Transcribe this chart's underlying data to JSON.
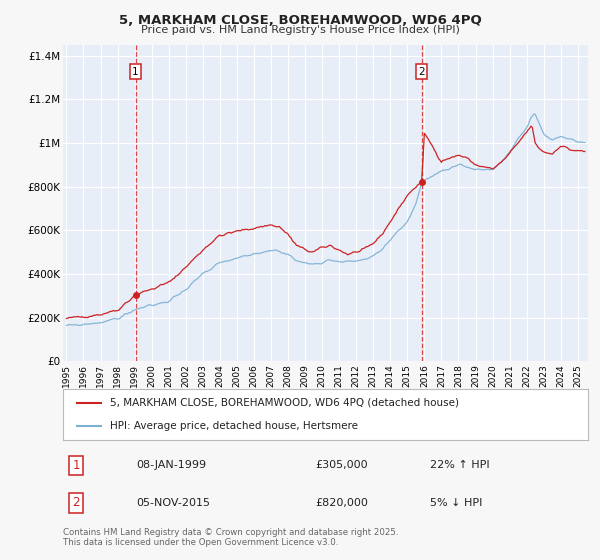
{
  "title": "5, MARKHAM CLOSE, BOREHAMWOOD, WD6 4PQ",
  "subtitle": "Price paid vs. HM Land Registry's House Price Index (HPI)",
  "background_color": "#f7f7f7",
  "plot_bg_color": "#e8eef8",
  "grid_color": "#ffffff",
  "sale1_date": 1999.06,
  "sale1_price": 305000,
  "sale1_label": "1",
  "sale1_hpi_text": "22% ↑ HPI",
  "sale1_date_text": "08-JAN-1999",
  "sale2_date": 2015.85,
  "sale2_price": 820000,
  "sale2_label": "2",
  "sale2_hpi_text": "5% ↓ HPI",
  "sale2_date_text": "05-NOV-2015",
  "hpi_line_color": "#7ab0d4",
  "price_line_color": "#cc2222",
  "vline_color": "#dd3333",
  "marker_color": "#cc2222",
  "legend_label_price": "5, MARKHAM CLOSE, BOREHAMWOOD, WD6 4PQ (detached house)",
  "legend_label_hpi": "HPI: Average price, detached house, Hertsmere",
  "footer_text": "Contains HM Land Registry data © Crown copyright and database right 2025.\nThis data is licensed under the Open Government Licence v3.0.",
  "ylim": [
    0,
    1450000
  ],
  "xlim_start": 1994.8,
  "xlim_end": 2025.6,
  "yticks": [
    0,
    200000,
    400000,
    600000,
    800000,
    1000000,
    1200000,
    1400000
  ],
  "ylabels": [
    "£0",
    "£200K",
    "£400K",
    "£600K",
    "£800K",
    "£1M",
    "£1.2M",
    "£1.4M"
  ]
}
